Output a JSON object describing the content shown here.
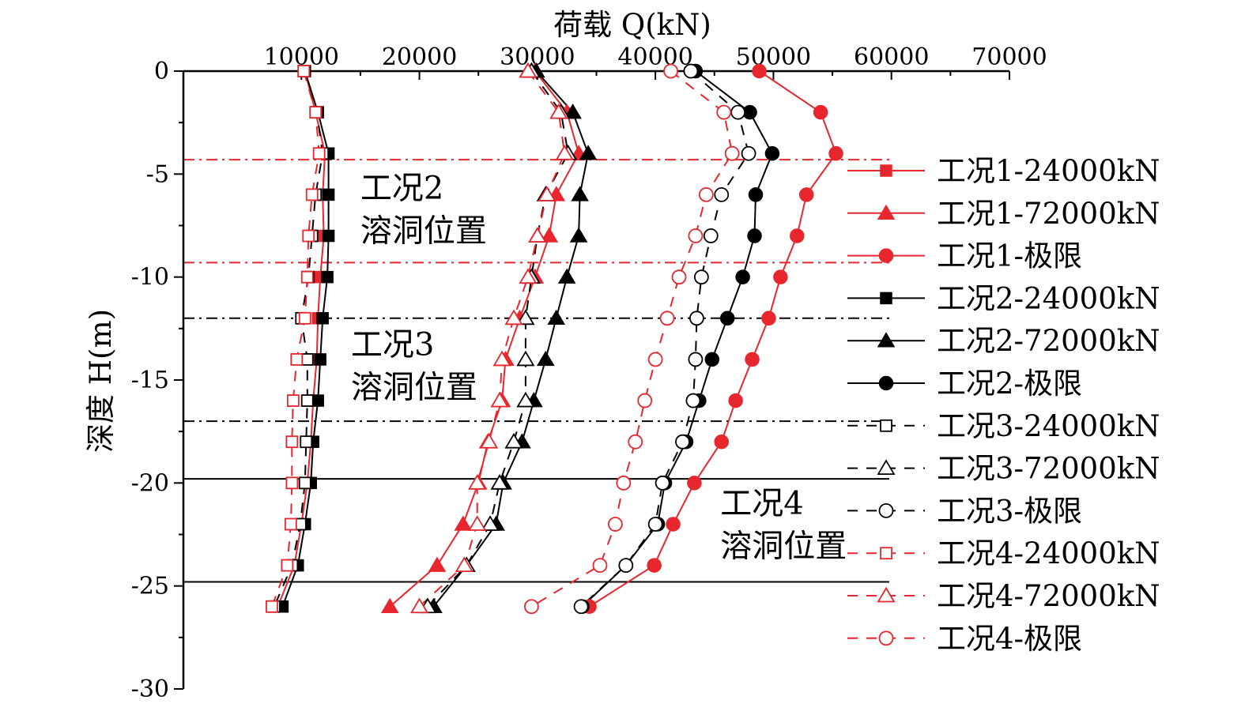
{
  "chart_data": {
    "type": "line",
    "title": "",
    "xlabel": "荷载 Q(kN)",
    "ylabel": "深度 H(m)",
    "x_axis_position": "top",
    "xlim": [
      0,
      70000
    ],
    "ylim": [
      -30,
      0
    ],
    "x_ticks": [
      10000,
      20000,
      30000,
      40000,
      50000,
      60000,
      70000
    ],
    "y_ticks": [
      0,
      -5,
      -10,
      -15,
      -20,
      -25,
      -30
    ],
    "grid": false,
    "legend_position": "right",
    "depths": [
      0,
      -2,
      -4,
      -6,
      -8,
      -10,
      -12,
      -14,
      -16,
      -18,
      -20,
      -22,
      -24,
      -26
    ],
    "series": [
      {
        "name": "工况1-24000kN",
        "color": "#e8262d",
        "dash": "solid",
        "marker": "square",
        "fill": "filled",
        "values": [
          10300,
          11200,
          12000,
          11800,
          11900,
          11600,
          11400,
          11300,
          11000,
          10800,
          10500,
          10000,
          9400,
          8000
        ]
      },
      {
        "name": "工况1-72000kN",
        "color": "#e8262d",
        "dash": "solid",
        "marker": "triangle",
        "fill": "filled",
        "values": [
          29800,
          32500,
          33500,
          31600,
          31000,
          29800,
          28500,
          27300,
          27000,
          25800,
          25000,
          23700,
          21500,
          17500
        ]
      },
      {
        "name": "工况1-极限",
        "color": "#e8262d",
        "dash": "solid",
        "marker": "circle",
        "fill": "filled",
        "values": [
          48800,
          54000,
          55300,
          52800,
          52000,
          50600,
          49600,
          48200,
          46800,
          45600,
          43300,
          41500,
          39900,
          34400
        ]
      },
      {
        "name": "工况2-24000kN",
        "color": "#000000",
        "dash": "solid",
        "marker": "square",
        "fill": "filled",
        "values": [
          10300,
          11400,
          12300,
          12300,
          12300,
          12200,
          11800,
          11600,
          11400,
          11000,
          10800,
          10300,
          9700,
          8400
        ]
      },
      {
        "name": "工况2-72000kN",
        "color": "#000000",
        "dash": "solid",
        "marker": "triangle",
        "fill": "filled",
        "values": [
          29900,
          33000,
          34300,
          33600,
          33500,
          32500,
          31600,
          30700,
          29700,
          28700,
          27100,
          26500,
          24000,
          21200
        ]
      },
      {
        "name": "工况2-极限",
        "color": "#000000",
        "dash": "solid",
        "marker": "circle",
        "fill": "filled",
        "values": [
          43400,
          48000,
          49900,
          48500,
          48400,
          47400,
          46100,
          44800,
          43700,
          42600,
          40800,
          40200,
          37500,
          33800
        ]
      },
      {
        "name": "工况3-24000kN",
        "color": "#000000",
        "dash": "dash",
        "marker": "square",
        "fill": "open",
        "values": [
          10200,
          11300,
          11800,
          11200,
          10900,
          10600,
          10000,
          10500,
          10500,
          10400,
          10300,
          9900,
          9200,
          7700
        ]
      },
      {
        "name": "工况3-72000kN",
        "color": "#000000",
        "dash": "dash",
        "marker": "triangle",
        "fill": "open",
        "values": [
          29500,
          32000,
          32600,
          30700,
          30000,
          29500,
          29000,
          29000,
          29000,
          28000,
          26800,
          26000,
          24000,
          20700
        ]
      },
      {
        "name": "工况3-极限",
        "color": "#000000",
        "dash": "dash",
        "marker": "circle",
        "fill": "open",
        "values": [
          43000,
          47000,
          47900,
          45600,
          44700,
          43900,
          43500,
          43400,
          43200,
          42300,
          40600,
          40000,
          37500,
          33700
        ]
      },
      {
        "name": "工况4-24000kN",
        "color": "#e8262d",
        "dash": "dash",
        "marker": "square",
        "fill": "open",
        "values": [
          10200,
          11200,
          11500,
          10900,
          10600,
          10500,
          10300,
          9600,
          9300,
          9200,
          9200,
          9100,
          8800,
          7500
        ]
      },
      {
        "name": "工况4-72000kN",
        "color": "#e8262d",
        "dash": "dash",
        "marker": "triangle",
        "fill": "open",
        "values": [
          29200,
          31800,
          32300,
          30800,
          30000,
          29200,
          28000,
          27000,
          26800,
          25900,
          24900,
          24900,
          23800,
          20000
        ]
      },
      {
        "name": "工况4-极限",
        "color": "#e8262d",
        "dash": "dash",
        "marker": "circle",
        "fill": "open",
        "values": [
          41300,
          45800,
          46500,
          44300,
          43400,
          42000,
          41000,
          40000,
          39100,
          38300,
          37300,
          36600,
          35300,
          29500
        ]
      }
    ],
    "reference_lines": [
      {
        "y": -4.3,
        "color": "#e8262d",
        "style": "dashdot"
      },
      {
        "y": -9.3,
        "color": "#e8262d",
        "style": "dashdot"
      },
      {
        "y": -12.0,
        "color": "#000000",
        "style": "dashdot"
      },
      {
        "y": -17.0,
        "color": "#000000",
        "style": "dashdot"
      },
      {
        "y": -19.8,
        "color": "#000000",
        "style": "solid"
      },
      {
        "y": -24.8,
        "color": "#000000",
        "style": "solid"
      }
    ],
    "annotations": [
      {
        "lines": [
          "工况2",
          "溶洞位置"
        ],
        "x": 15000,
        "y": -6.2
      },
      {
        "lines": [
          "工况3",
          "溶洞位置"
        ],
        "x": 14200,
        "y": -13.8
      },
      {
        "lines": [
          "工况4",
          "溶洞位置"
        ],
        "x": 45500,
        "y": -21.5
      }
    ]
  }
}
